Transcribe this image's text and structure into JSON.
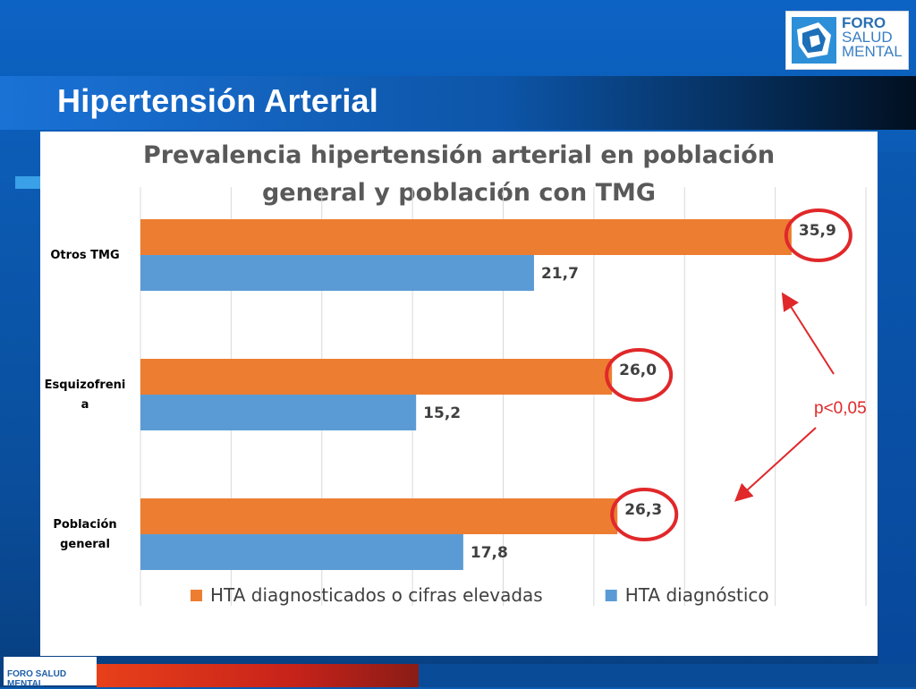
{
  "slide": {
    "title": "Hipertensión Arterial",
    "logo": {
      "line1": "FORO",
      "line2": "SALUD",
      "line3": "MENTAL",
      "mini": "FORO SALUD MENTAL"
    },
    "annotation": "p<0,05"
  },
  "colors": {
    "series1": "#ed7d31",
    "series2": "#5b9bd5",
    "highlight": "#e0282a"
  },
  "chart_data": {
    "type": "bar",
    "orientation": "horizontal",
    "title": "Prevalencia hipertensión arterial en población general y población con TMG",
    "title_lines": [
      "Prevalencia hipertensión arterial en población",
      "general y población con TMG"
    ],
    "categories": [
      {
        "name": "Otros TMG",
        "lines": [
          "Otros TMG"
        ]
      },
      {
        "name": "Esquizofrenia",
        "lines": [
          "Esquizofreni",
          "a"
        ]
      },
      {
        "name": "Población general",
        "lines": [
          "Población",
          "general"
        ]
      }
    ],
    "series": [
      {
        "name": "HTA diagnosticados o cifras elevadas",
        "values": [
          35.9,
          26.0,
          26.3
        ],
        "labels": [
          "35,9",
          "26,0",
          "26,3"
        ]
      },
      {
        "name": "HTA diagnóstico",
        "values": [
          21.7,
          15.2,
          17.8
        ],
        "labels": [
          "21,7",
          "15,2",
          "17,8"
        ]
      }
    ],
    "xlim": [
      0,
      40
    ],
    "grid": true,
    "legend": "bottom",
    "highlighted_series": 0
  }
}
